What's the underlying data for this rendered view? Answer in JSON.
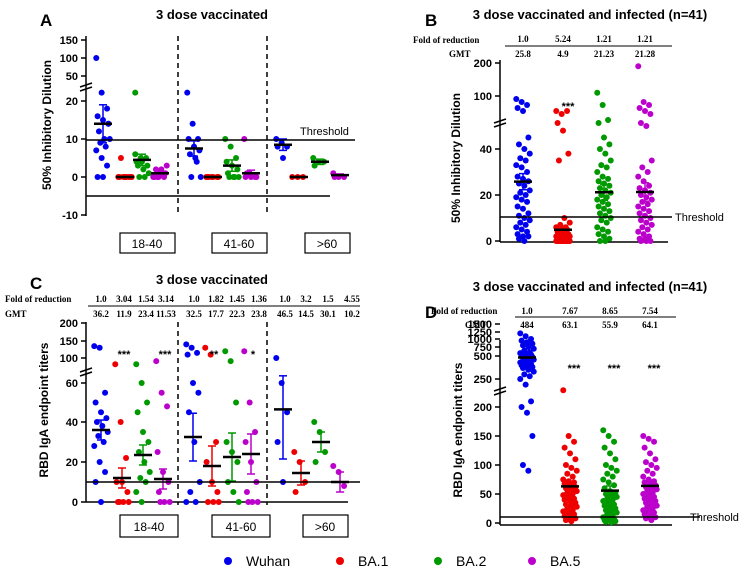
{
  "colors": {
    "Wuhan": "#0000ee",
    "BA.1": "#ee0000",
    "BA.2": "#009900",
    "BA.5": "#bb00cc"
  },
  "legend": [
    {
      "label": "Wuhan",
      "color": "#0000ee"
    },
    {
      "label": "BA.1",
      "color": "#ee0000"
    },
    {
      "label": "BA.2",
      "color": "#009900"
    },
    {
      "label": "BA.5",
      "color": "#bb00cc"
    }
  ],
  "chart_data": [
    {
      "panel": "A",
      "type": "scatter",
      "title": "3 dose vaccinated",
      "ylabel": "50% Inhibitory Dilution",
      "ytick_labels": [
        "-10",
        "0",
        "10",
        "20",
        "50",
        "100",
        "150"
      ],
      "threshold_label": "Threshold",
      "threshold_value": 10,
      "groups": [
        "18-40",
        "41-60",
        ">60"
      ],
      "series_order": [
        "Wuhan",
        "BA.1",
        "BA.2",
        "BA.5"
      ],
      "means": [
        [
          14,
          0,
          4.5,
          1
        ],
        [
          7.5,
          0,
          3,
          1
        ],
        [
          8.5,
          0,
          4,
          0.5
        ]
      ],
      "sem": [
        [
          5,
          0.5,
          1.5,
          0.8
        ],
        [
          2,
          0.3,
          1.5,
          0.8
        ],
        [
          1.5,
          0.3,
          0.7,
          0.3
        ]
      ],
      "points": [
        [
          [
            100,
            30,
            18,
            16,
            15,
            14,
            12,
            10,
            10,
            9,
            8,
            7,
            5,
            3,
            0,
            0,
            14
          ],
          [
            0,
            0,
            0,
            0,
            0,
            0,
            5,
            0,
            0
          ],
          [
            30,
            5,
            5,
            4,
            4,
            3,
            3,
            2,
            1,
            0,
            0,
            6
          ],
          [
            0,
            0,
            0,
            0,
            1,
            1,
            2,
            2,
            3,
            0
          ]
        ],
        [
          [
            30,
            14,
            10,
            10,
            8,
            7,
            6,
            5,
            0,
            0,
            4
          ],
          [
            0,
            0,
            0,
            0,
            0,
            0,
            0
          ],
          [
            10,
            8,
            5,
            4,
            3,
            2,
            1,
            0,
            0,
            0,
            0
          ],
          [
            10,
            1,
            0,
            0,
            0,
            0,
            1
          ]
        ],
        [
          [
            10,
            9,
            8,
            8,
            5
          ],
          [
            0,
            0,
            0
          ],
          [
            5,
            4,
            4,
            3
          ],
          [
            1,
            0,
            0,
            0
          ]
        ]
      ]
    },
    {
      "panel": "B",
      "type": "scatter",
      "title": "3 dose vaccinated and infected (n=41)",
      "ylabel": "50% Inhibitory Dilution",
      "ytick_labels": [
        "0",
        "20",
        "40",
        "100",
        "200"
      ],
      "threshold_label": "Threshold",
      "threshold_value": 10,
      "fold_label": "Fold of reduction",
      "gmt_label": "GMT",
      "fold": [
        "1.0",
        "5.24",
        "1.21",
        "1.21"
      ],
      "gmt": [
        "25.8",
        "4.9",
        "21.23",
        "21.28"
      ],
      "significance": [
        "",
        "***",
        "",
        ""
      ],
      "series_order": [
        "Wuhan",
        "BA.1",
        "BA.2",
        "BA.5"
      ],
      "means": [
        25.8,
        4.9,
        21.2,
        21.3
      ],
      "sem": [
        3.5,
        1.5,
        3.5,
        4
      ],
      "points": [
        [
          95,
          90,
          85,
          80,
          75,
          45,
          42,
          40,
          38,
          36,
          35,
          33,
          32,
          30,
          28,
          27,
          26,
          25,
          24,
          22,
          21,
          20,
          19,
          18,
          17,
          15,
          14,
          12,
          11,
          10,
          9,
          8,
          7,
          6,
          5,
          4,
          3,
          2,
          2,
          1,
          0
        ],
        [
          75,
          70,
          75,
          55,
          48,
          38,
          35,
          10,
          8,
          7,
          6,
          6,
          5,
          5,
          4,
          4,
          3,
          3,
          3,
          2,
          2,
          2,
          2,
          1,
          1,
          1,
          1,
          1,
          0,
          0,
          0,
          0,
          0,
          0,
          0,
          0,
          0,
          0,
          0,
          0,
          0
        ],
        [
          110,
          85,
          60,
          55,
          45,
          42,
          40,
          38,
          35,
          33,
          32,
          30,
          28,
          27,
          26,
          25,
          24,
          23,
          22,
          21,
          20,
          19,
          18,
          17,
          16,
          15,
          14,
          13,
          12,
          11,
          10,
          9,
          8,
          6,
          5,
          4,
          3,
          2,
          1,
          0,
          0
        ],
        [
          190,
          90,
          85,
          80,
          75,
          70,
          55,
          50,
          35,
          32,
          30,
          28,
          26,
          24,
          23,
          22,
          21,
          20,
          19,
          18,
          17,
          16,
          15,
          14,
          13,
          12,
          11,
          10,
          9,
          8,
          7,
          6,
          5,
          4,
          3,
          2,
          1,
          1,
          0,
          0,
          0
        ]
      ]
    },
    {
      "panel": "C",
      "type": "scatter",
      "title": "3 dose vaccinated",
      "ylabel": "RBD IgA endpoint titers",
      "ytick_labels": [
        "0",
        "20",
        "40",
        "60",
        "100",
        "150",
        "200"
      ],
      "fold_label": "Fold of reduction",
      "gmt_label": "GMT",
      "fold": [
        "1.0",
        "3.04",
        "1.54",
        "3.14",
        "1.0",
        "1.82",
        "1.45",
        "1.36",
        "1.0",
        "3.2",
        "1.5",
        "4.55"
      ],
      "gmt": [
        "36.2",
        "11.9",
        "23.4",
        "11.53",
        "32.5",
        "17.7",
        "22.3",
        "23.8",
        "46.5",
        "14.5",
        "30.1",
        "10.2"
      ],
      "threshold_value": 10,
      "groups": [
        "18-40",
        "41-60",
        ">60"
      ],
      "significance": [
        [
          "",
          "***",
          "",
          "***"
        ],
        [
          "",
          "**",
          "",
          "*"
        ],
        [
          "",
          "",
          "",
          ""
        ]
      ],
      "series_order": [
        "Wuhan",
        "BA.1",
        "BA.2",
        "BA.5"
      ],
      "means": [
        [
          36,
          12,
          23.5,
          11.5
        ],
        [
          32.5,
          18,
          22.5,
          24
        ],
        [
          46.5,
          14.5,
          30,
          10
        ]
      ],
      "sem": [
        [
          5,
          5,
          5,
          5
        ],
        [
          12,
          10,
          12,
          10
        ],
        [
          25,
          6,
          5,
          5
        ]
      ],
      "points": [
        [
          [
            135,
            130,
            55,
            50,
            45,
            42,
            40,
            38,
            35,
            33,
            30,
            28,
            20,
            15,
            10,
            0
          ],
          [
            90,
            40,
            22,
            10,
            10,
            5,
            0,
            0,
            0,
            0
          ],
          [
            90,
            60,
            50,
            45,
            35,
            30,
            25,
            20,
            15,
            12,
            10,
            5,
            0
          ],
          [
            95,
            55,
            48,
            25,
            15,
            10,
            5,
            0,
            0,
            0
          ]
        ],
        [
          [
            140,
            130,
            115,
            110,
            60,
            55,
            45,
            30,
            10,
            5,
            0,
            0
          ],
          [
            130,
            110,
            30,
            20,
            10,
            5,
            0,
            0,
            0
          ],
          [
            120,
            95,
            50,
            30,
            25,
            20,
            10,
            5,
            0
          ],
          [
            120,
            50,
            35,
            30,
            20,
            10,
            5,
            0,
            0,
            0
          ]
        ],
        [
          [
            100,
            60,
            45,
            30,
            10
          ],
          [
            25,
            20,
            10,
            5
          ],
          [
            40,
            35,
            25,
            20
          ],
          [
            18,
            15,
            8
          ]
        ]
      ]
    },
    {
      "panel": "D",
      "type": "scatter",
      "title": "3 dose vaccinated and infected (n=41)",
      "ylabel": "RBD IgA endpoint titers",
      "ytick_labels": [
        "0",
        "50",
        "100",
        "150",
        "200",
        "250",
        "500",
        "750",
        "1000",
        "1250",
        "1500"
      ],
      "threshold_label": "Threshold",
      "threshold_value": 10,
      "fold_label": "Fold of reduction",
      "gmt_label": "GMT",
      "fold": [
        "1.0",
        "7.67",
        "8.65",
        "7.54"
      ],
      "gmt": [
        "484",
        "63.1",
        "55.9",
        "64.1"
      ],
      "significance": [
        "",
        "***",
        "***",
        "***"
      ],
      "series_order": [
        "Wuhan",
        "BA.1",
        "BA.2",
        "BA.5"
      ],
      "means": [
        484,
        63.1,
        55.9,
        64.1
      ],
      "sem": [
        40,
        8,
        8,
        8
      ],
      "points": [
        [
          1200,
          1100,
          1000,
          950,
          900,
          850,
          800,
          750,
          700,
          650,
          600,
          580,
          560,
          540,
          520,
          500,
          490,
          480,
          470,
          460,
          450,
          440,
          430,
          420,
          410,
          400,
          390,
          380,
          370,
          350,
          330,
          300,
          280,
          250,
          240,
          210,
          200,
          190,
          150,
          100,
          90
        ],
        [
          230,
          150,
          140,
          130,
          120,
          110,
          100,
          95,
          90,
          85,
          80,
          75,
          72,
          70,
          68,
          65,
          62,
          60,
          58,
          55,
          52,
          50,
          48,
          45,
          42,
          40,
          38,
          35,
          32,
          30,
          28,
          25,
          22,
          20,
          18,
          15,
          12,
          10,
          8,
          5,
          3
        ],
        [
          160,
          150,
          140,
          130,
          120,
          110,
          100,
          95,
          90,
          85,
          80,
          75,
          70,
          65,
          60,
          55,
          52,
          50,
          48,
          45,
          42,
          40,
          38,
          35,
          32,
          30,
          28,
          25,
          22,
          20,
          18,
          15,
          12,
          10,
          8,
          7,
          5,
          4,
          3,
          2,
          1
        ],
        [
          150,
          145,
          140,
          130,
          120,
          110,
          105,
          100,
          95,
          90,
          85,
          80,
          75,
          72,
          70,
          68,
          65,
          62,
          60,
          58,
          55,
          52,
          50,
          48,
          45,
          42,
          40,
          38,
          35,
          32,
          30,
          28,
          25,
          22,
          20,
          18,
          15,
          12,
          10,
          8,
          5
        ]
      ]
    }
  ]
}
